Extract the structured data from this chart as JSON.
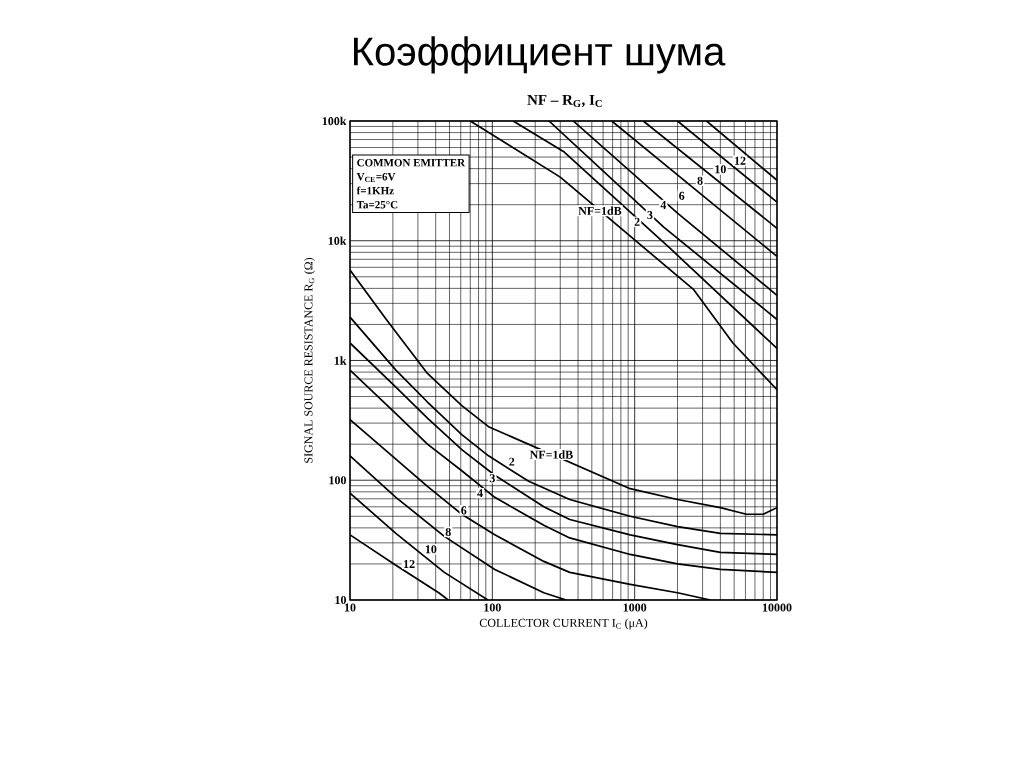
{
  "chart_data": {
    "type": "line",
    "title": "Коэффициент шума",
    "subtitle": "NF – R$_{G}$, I$_{C}$",
    "xlabel": "COLLECTOR CURRENT  I$_{C}$ (μA)",
    "ylabel": "SIGNAL SOURCE RESISTANCE  R$_{G}$ (Ω)",
    "log": "xy",
    "grid": true,
    "marker": "none",
    "line_style": "solid",
    "xlim": [
      10,
      10000
    ],
    "ylim": [
      10,
      100000
    ],
    "xticks": [
      10,
      100,
      1000,
      10000
    ],
    "yticks": [
      10,
      100,
      {
        "value": 1000,
        "label": "1k"
      },
      {
        "value": 10000,
        "label": "10k"
      },
      {
        "value": 100000,
        "label": "100k"
      }
    ],
    "series": [
      {
        "color": "#000000",
        "x": [
          10,
          18,
          35,
          61,
          94,
          930,
          2000,
          4000,
          6100,
          8000,
          10000,
          null,
          70,
          300,
          2600,
          4900,
          10000
        ],
        "values": [
          5700,
          2200,
          780,
          420,
          280,
          85,
          69,
          59,
          52,
          52,
          59,
          null,
          100000,
          34000,
          3900,
          1400,
          570
        ]
      },
      {
        "color": "#000000",
        "x": [
          10,
          21,
          35,
          61,
          94,
          180,
          350,
          930,
          2000,
          4000,
          10000,
          null,
          140,
          320,
          1800,
          10000
        ],
        "values": [
          2300,
          830,
          450,
          240,
          160,
          98,
          69,
          50,
          41,
          36,
          35,
          null,
          100000,
          55000,
          8500,
          1260
        ]
      },
      {
        "color": "#000000",
        "x": [
          10,
          21,
          35,
          61,
          104,
          230,
          350,
          930,
          2000,
          4000,
          10000,
          null,
          250,
          1600,
          10000
        ],
        "values": [
          1400,
          600,
          330,
          180,
          110,
          60,
          47,
          35,
          29,
          25,
          24,
          null,
          100000,
          13000,
          2200
        ]
      },
      {
        "color": "#000000",
        "x": [
          10,
          21,
          35,
          61,
          104,
          230,
          350,
          930,
          2000,
          4000,
          10000,
          null,
          370,
          2000,
          10000
        ],
        "values": [
          830,
          360,
          200,
          120,
          72,
          42,
          33,
          24,
          20,
          18,
          17,
          null,
          100000,
          17000,
          3500
        ]
      },
      {
        "color": "#000000",
        "x": [
          10,
          21,
          35,
          61,
          104,
          230,
          350,
          930,
          2000,
          3400,
          null,
          690,
          10000
        ],
        "values": [
          320,
          150,
          89,
          52,
          35,
          21,
          17,
          13.5,
          11.5,
          10,
          null,
          100000,
          7400
        ]
      },
      {
        "color": "#000000",
        "x": [
          10,
          21,
          46,
          104,
          230,
          330,
          null,
          1150,
          10000
        ],
        "values": [
          160,
          72,
          34,
          18,
          11.5,
          10,
          null,
          100000,
          12700
        ]
      },
      {
        "color": "#000000",
        "x": [
          10,
          21,
          46,
          93,
          null,
          2000,
          10000
        ],
        "values": [
          78,
          36,
          17,
          10,
          null,
          100000,
          21000
        ]
      },
      {
        "color": "#000000",
        "x": [
          10,
          21,
          42,
          49,
          null,
          3200,
          10000
        ],
        "values": [
          35,
          19.5,
          11.5,
          10,
          null,
          100000,
          32000
        ]
      }
    ],
    "annotations": [
      "COMMON EMITTER",
      "V$_{CE}$=6V",
      "f=1KHz",
      "Ta=25°C",
      {
        "text": "NF=1dB",
        "x": 260,
        "y": 164
      },
      {
        "text": "2",
        "x": 137,
        "y": 143
      },
      {
        "text": "3",
        "x": 100,
        "y": 104
      },
      {
        "text": "4",
        "x": 82,
        "y": 78
      },
      {
        "text": "6",
        "x": 63,
        "y": 56
      },
      {
        "text": "8",
        "x": 49,
        "y": 37
      },
      {
        "text": "10",
        "x": 37,
        "y": 26.5
      },
      {
        "text": "12",
        "x": 26,
        "y": 20
      },
      {
        "text": "NF=1dB",
        "x": 570,
        "y": 17800
      },
      {
        "text": "2",
        "x": 1040,
        "y": 14400
      },
      {
        "text": "3",
        "x": 1280,
        "y": 16400
      },
      {
        "text": "4",
        "x": 1590,
        "y": 19900
      },
      {
        "text": "6",
        "x": 2140,
        "y": 23700
      },
      {
        "text": "8",
        "x": 2880,
        "y": 31700
      },
      {
        "text": "10",
        "x": 4000,
        "y": 39500
      },
      {
        "text": "12",
        "x": 5500,
        "y": 46600
      }
    ]
  }
}
